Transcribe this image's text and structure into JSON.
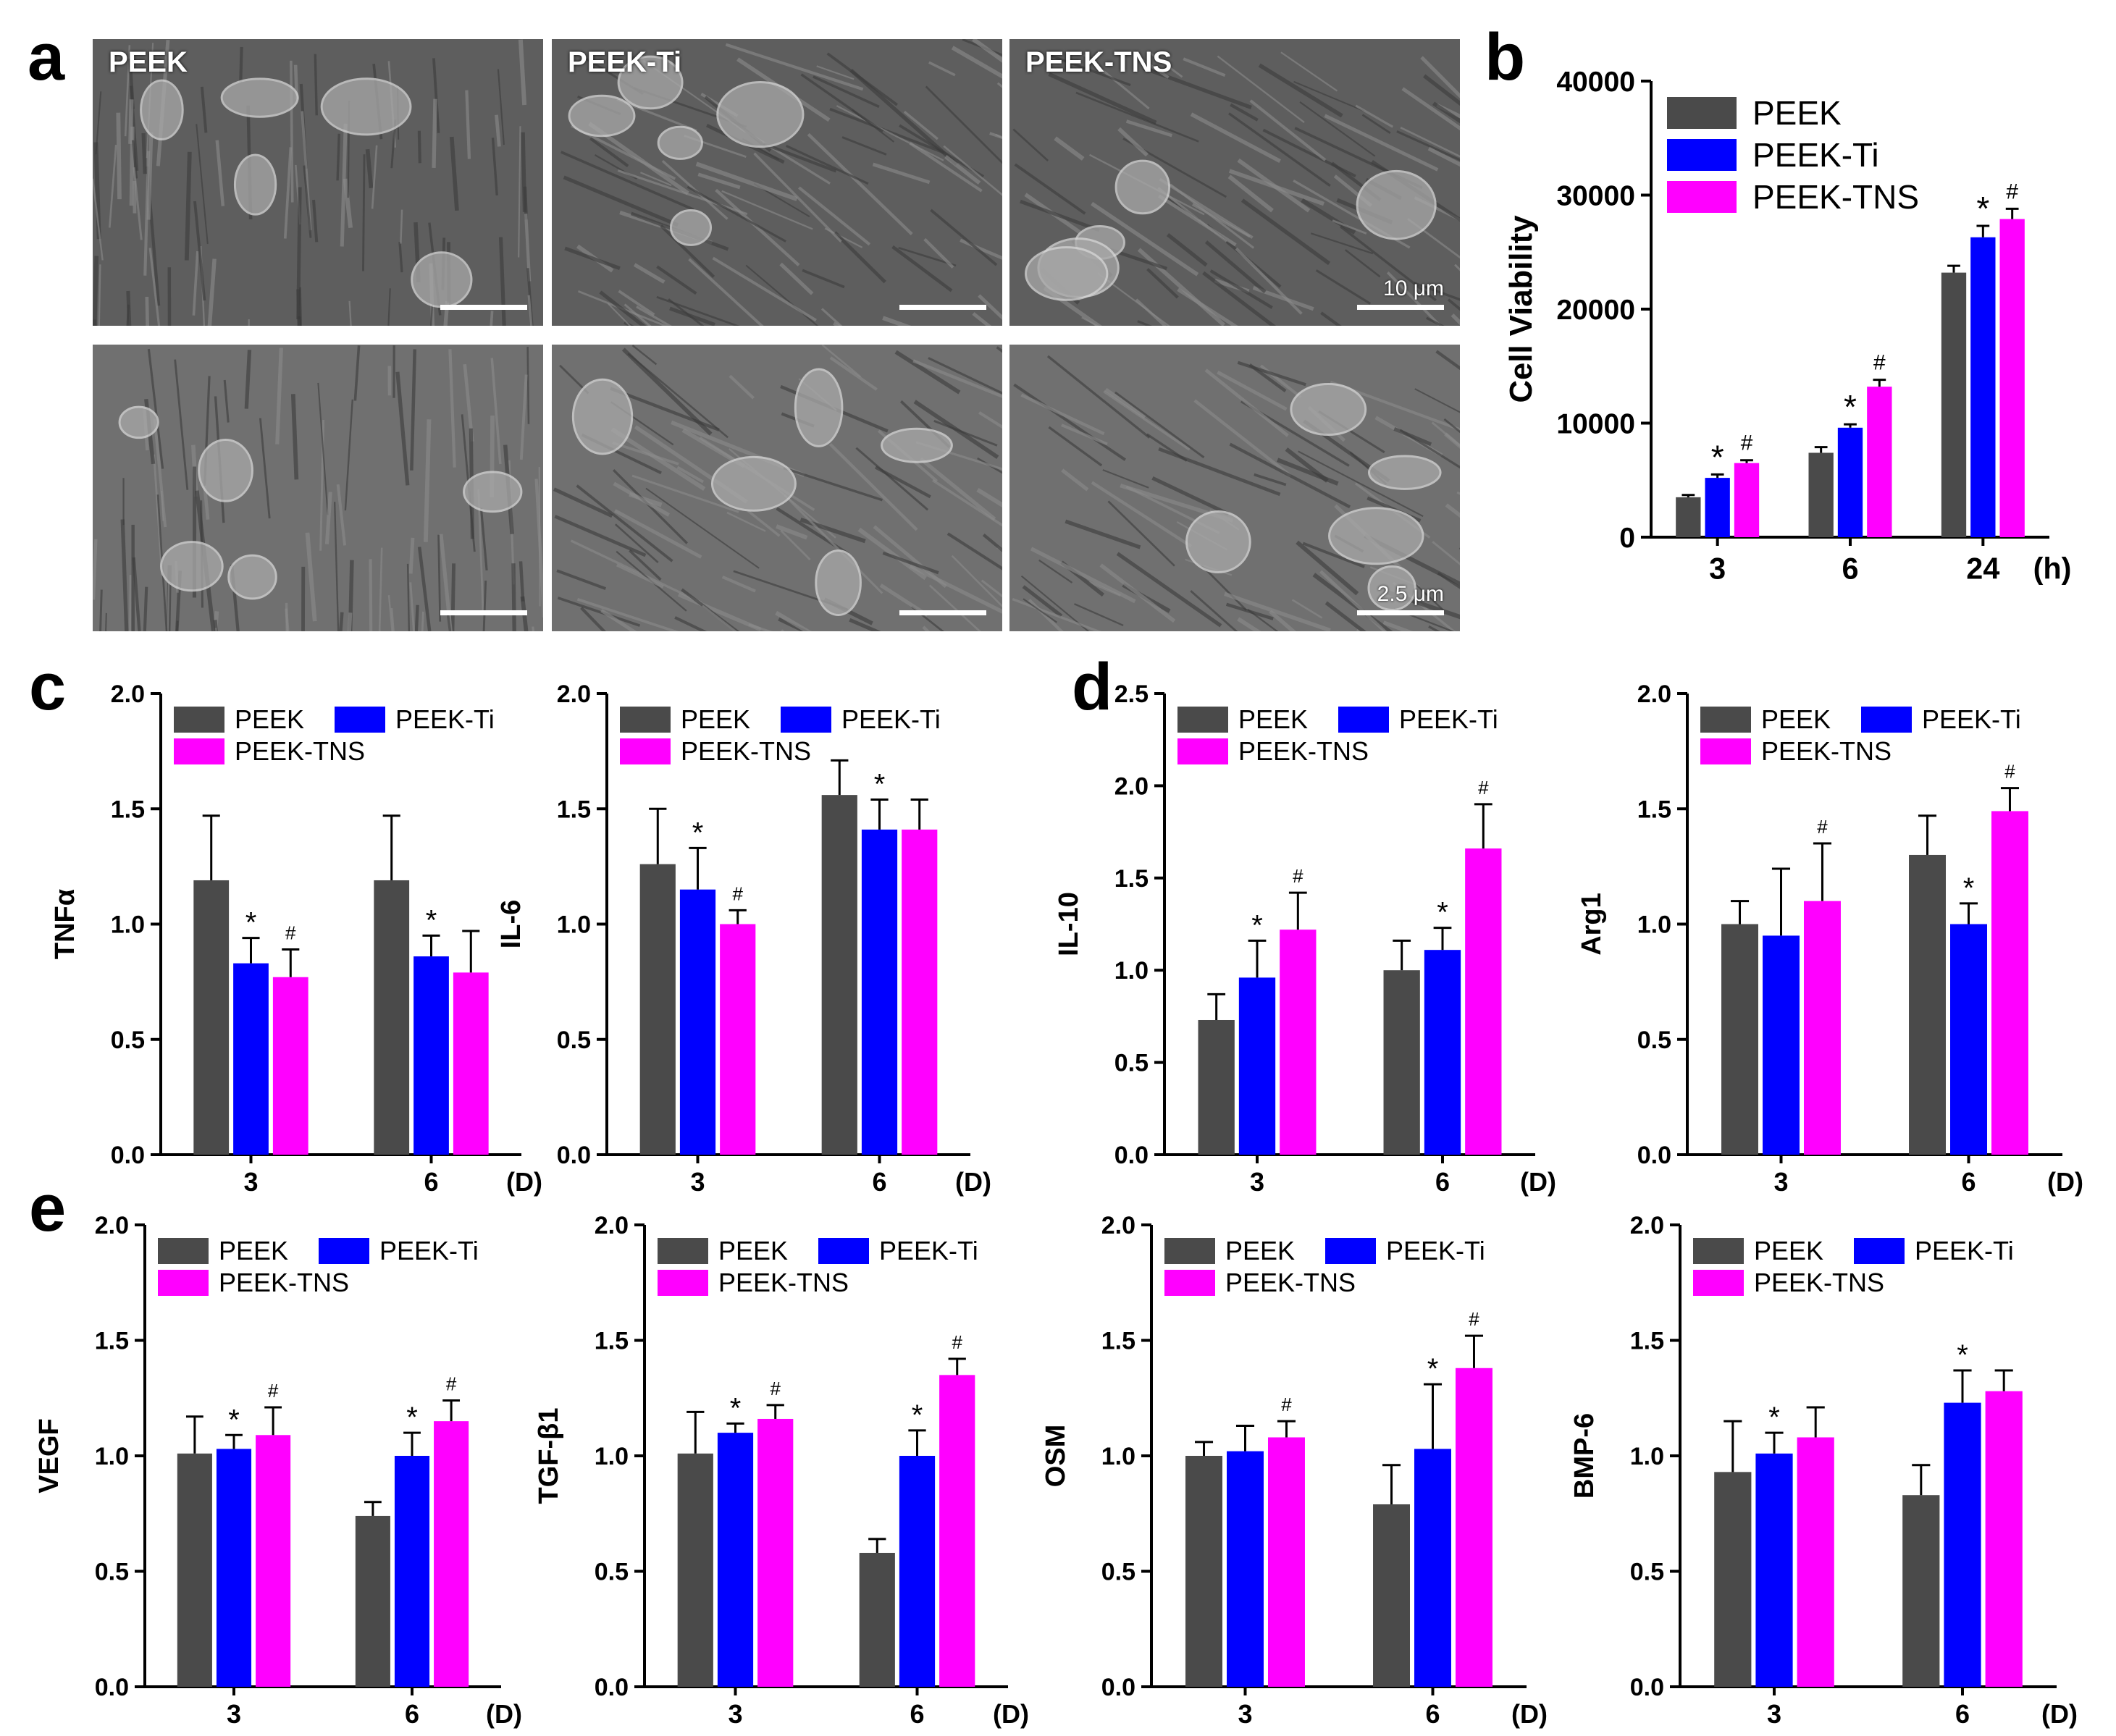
{
  "colors": {
    "PEEK": "#4a4a4a",
    "PEEK-Ti": "#0000ff",
    "PEEK-TNS": "#ff00ff"
  },
  "panel_letters": [
    "a",
    "b",
    "c",
    "d",
    "e"
  ],
  "sem_images": {
    "columns": [
      "PEEK",
      "PEEK-Ti",
      "PEEK-TNS"
    ],
    "scale_bars": {
      "row1": "10 μm",
      "row2": "2.5 μm"
    }
  },
  "chart_data": [
    {
      "type": "bar",
      "panel": "b",
      "title": "",
      "ylabel": "Cell Viability",
      "xlabel": "",
      "xunit": "(h)",
      "categories": [
        "3",
        "6",
        "24"
      ],
      "ylim": [
        0,
        40000
      ],
      "yticks": [
        "0",
        "10000",
        "20000",
        "30000",
        "40000"
      ],
      "legend": "top-left",
      "series": [
        {
          "name": "PEEK",
          "values": [
            3500,
            7400,
            23200
          ],
          "errors": [
            200,
            500,
            600
          ],
          "marks": [
            "",
            "",
            ""
          ]
        },
        {
          "name": "PEEK-Ti",
          "values": [
            5200,
            9600,
            26300
          ],
          "errors": [
            300,
            300,
            1000
          ],
          "marks": [
            "*",
            "*",
            "*"
          ]
        },
        {
          "name": "PEEK-TNS",
          "values": [
            6500,
            13200,
            27900
          ],
          "errors": [
            250,
            600,
            900
          ],
          "marks": [
            "#",
            "#",
            "#"
          ]
        }
      ]
    },
    {
      "type": "bar",
      "panel": "c",
      "title": "",
      "ylabel": "TNFα",
      "xlabel": "",
      "xunit": "(D)",
      "categories": [
        "3",
        "6"
      ],
      "ylim": [
        0,
        2.0
      ],
      "yticks": [
        "0.0",
        "0.5",
        "1.0",
        "1.5",
        "2.0"
      ],
      "legend": "top",
      "series": [
        {
          "name": "PEEK",
          "values": [
            1.19,
            1.19
          ],
          "errors": [
            0.28,
            0.28
          ],
          "marks": [
            "",
            ""
          ]
        },
        {
          "name": "PEEK-Ti",
          "values": [
            0.83,
            0.86
          ],
          "errors": [
            0.11,
            0.09
          ],
          "marks": [
            "*",
            "*"
          ]
        },
        {
          "name": "PEEK-TNS",
          "values": [
            0.77,
            0.79
          ],
          "errors": [
            0.12,
            0.18
          ],
          "marks": [
            "#",
            ""
          ]
        }
      ]
    },
    {
      "type": "bar",
      "panel": "c",
      "title": "",
      "ylabel": "IL-6",
      "xlabel": "",
      "xunit": "(D)",
      "categories": [
        "3",
        "6"
      ],
      "ylim": [
        0,
        2.0
      ],
      "yticks": [
        "0.0",
        "0.5",
        "1.0",
        "1.5",
        "2.0"
      ],
      "legend": "top",
      "series": [
        {
          "name": "PEEK",
          "values": [
            1.26,
            1.56
          ],
          "errors": [
            0.24,
            0.15
          ],
          "marks": [
            "",
            ""
          ]
        },
        {
          "name": "PEEK-Ti",
          "values": [
            1.15,
            1.41
          ],
          "errors": [
            0.18,
            0.13
          ],
          "marks": [
            "*",
            "*"
          ]
        },
        {
          "name": "PEEK-TNS",
          "values": [
            1.0,
            1.41
          ],
          "errors": [
            0.06,
            0.13
          ],
          "marks": [
            "#",
            ""
          ]
        }
      ]
    },
    {
      "type": "bar",
      "panel": "d",
      "title": "",
      "ylabel": "IL-10",
      "xlabel": "",
      "xunit": "(D)",
      "categories": [
        "3",
        "6"
      ],
      "ylim": [
        0,
        2.5
      ],
      "yticks": [
        "0.0",
        "0.5",
        "1.0",
        "1.5",
        "2.0",
        "2.5"
      ],
      "legend": "top",
      "series": [
        {
          "name": "PEEK",
          "values": [
            0.73,
            1.0
          ],
          "errors": [
            0.14,
            0.16
          ],
          "marks": [
            "",
            ""
          ]
        },
        {
          "name": "PEEK-Ti",
          "values": [
            0.96,
            1.11
          ],
          "errors": [
            0.2,
            0.12
          ],
          "marks": [
            "*",
            "*"
          ]
        },
        {
          "name": "PEEK-TNS",
          "values": [
            1.22,
            1.66
          ],
          "errors": [
            0.2,
            0.24
          ],
          "marks": [
            "#",
            "#"
          ]
        }
      ]
    },
    {
      "type": "bar",
      "panel": "d",
      "title": "",
      "ylabel": "Arg1",
      "xlabel": "",
      "xunit": "(D)",
      "categories": [
        "3",
        "6"
      ],
      "ylim": [
        0,
        2.0
      ],
      "yticks": [
        "0.0",
        "0.5",
        "1.0",
        "1.5",
        "2.0"
      ],
      "legend": "top",
      "series": [
        {
          "name": "PEEK",
          "values": [
            1.0,
            1.3
          ],
          "errors": [
            0.1,
            0.17
          ],
          "marks": [
            "",
            ""
          ]
        },
        {
          "name": "PEEK-Ti",
          "values": [
            0.95,
            1.0
          ],
          "errors": [
            0.29,
            0.09
          ],
          "marks": [
            "",
            "*"
          ]
        },
        {
          "name": "PEEK-TNS",
          "values": [
            1.1,
            1.49
          ],
          "errors": [
            0.25,
            0.1
          ],
          "marks": [
            "#",
            "#"
          ]
        }
      ]
    },
    {
      "type": "bar",
      "panel": "e",
      "title": "",
      "ylabel": "VEGF",
      "xlabel": "",
      "xunit": "(D)",
      "categories": [
        "3",
        "6"
      ],
      "ylim": [
        0,
        2.0
      ],
      "yticks": [
        "0.0",
        "0.5",
        "1.0",
        "1.5",
        "2.0"
      ],
      "legend": "top",
      "series": [
        {
          "name": "PEEK",
          "values": [
            1.01,
            0.74
          ],
          "errors": [
            0.16,
            0.06
          ],
          "marks": [
            "",
            ""
          ]
        },
        {
          "name": "PEEK-Ti",
          "values": [
            1.03,
            1.0
          ],
          "errors": [
            0.06,
            0.1
          ],
          "marks": [
            "*",
            "*"
          ]
        },
        {
          "name": "PEEK-TNS",
          "values": [
            1.09,
            1.15
          ],
          "errors": [
            0.12,
            0.09
          ],
          "marks": [
            "#",
            "#"
          ]
        }
      ]
    },
    {
      "type": "bar",
      "panel": "e",
      "title": "",
      "ylabel": "TGF-β1",
      "xlabel": "",
      "xunit": "(D)",
      "categories": [
        "3",
        "6"
      ],
      "ylim": [
        0,
        2.0
      ],
      "yticks": [
        "0.0",
        "0.5",
        "1.0",
        "1.5",
        "2.0"
      ],
      "legend": "top",
      "series": [
        {
          "name": "PEEK",
          "values": [
            1.01,
            0.58
          ],
          "errors": [
            0.18,
            0.06
          ],
          "marks": [
            "",
            ""
          ]
        },
        {
          "name": "PEEK-Ti",
          "values": [
            1.1,
            1.0
          ],
          "errors": [
            0.04,
            0.11
          ],
          "marks": [
            "*",
            "*"
          ]
        },
        {
          "name": "PEEK-TNS",
          "values": [
            1.16,
            1.35
          ],
          "errors": [
            0.06,
            0.07
          ],
          "marks": [
            "#",
            "#"
          ]
        }
      ]
    },
    {
      "type": "bar",
      "panel": "e",
      "title": "",
      "ylabel": "OSM",
      "xlabel": "",
      "xunit": "(D)",
      "categories": [
        "3",
        "6"
      ],
      "ylim": [
        0,
        2.0
      ],
      "yticks": [
        "0.0",
        "0.5",
        "1.0",
        "1.5",
        "2.0"
      ],
      "legend": "top",
      "series": [
        {
          "name": "PEEK",
          "values": [
            1.0,
            0.79
          ],
          "errors": [
            0.06,
            0.17
          ],
          "marks": [
            "",
            ""
          ]
        },
        {
          "name": "PEEK-Ti",
          "values": [
            1.02,
            1.03
          ],
          "errors": [
            0.11,
            0.28
          ],
          "marks": [
            "",
            "*"
          ]
        },
        {
          "name": "PEEK-TNS",
          "values": [
            1.08,
            1.38
          ],
          "errors": [
            0.07,
            0.14
          ],
          "marks": [
            "#",
            "#"
          ]
        }
      ]
    },
    {
      "type": "bar",
      "panel": "e",
      "title": "",
      "ylabel": "BMP-6",
      "xlabel": "",
      "xunit": "(D)",
      "categories": [
        "3",
        "6"
      ],
      "ylim": [
        0,
        2.0
      ],
      "yticks": [
        "0.0",
        "0.5",
        "1.0",
        "1.5",
        "2.0"
      ],
      "legend": "top",
      "series": [
        {
          "name": "PEEK",
          "values": [
            0.93,
            0.83
          ],
          "errors": [
            0.22,
            0.13
          ],
          "marks": [
            "",
            ""
          ]
        },
        {
          "name": "PEEK-Ti",
          "values": [
            1.01,
            1.23
          ],
          "errors": [
            0.09,
            0.14
          ],
          "marks": [
            "*",
            "*"
          ]
        },
        {
          "name": "PEEK-TNS",
          "values": [
            1.08,
            1.28
          ],
          "errors": [
            0.13,
            0.09
          ],
          "marks": [
            "",
            ""
          ]
        }
      ]
    }
  ]
}
